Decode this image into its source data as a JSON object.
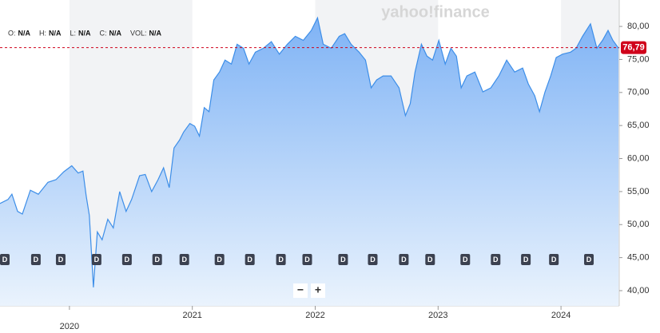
{
  "chart_data": {
    "type": "area",
    "watermark": "yahoo!finance",
    "header": [
      {
        "label": "O:",
        "value": "N/A"
      },
      {
        "label": "H:",
        "value": "N/A"
      },
      {
        "label": "L:",
        "value": "N/A"
      },
      {
        "label": "C:",
        "value": "N/A"
      },
      {
        "label": "VOL:",
        "value": "N/A"
      }
    ],
    "zoom": [
      "−",
      "+"
    ],
    "x": [
      2019.435,
      2019.5,
      2019.532,
      2019.578,
      2019.617,
      2019.682,
      2019.747,
      2019.825,
      2019.89,
      2019.954,
      2020.019,
      2020.071,
      2020.11,
      2020.136,
      2020.162,
      2020.195,
      2020.227,
      2020.266,
      2020.312,
      2020.357,
      2020.409,
      2020.461,
      2020.506,
      2020.571,
      2020.617,
      2020.669,
      2020.721,
      2020.766,
      2020.812,
      2020.851,
      2020.896,
      2020.929,
      2020.98,
      2021.019,
      2021.058,
      2021.097,
      2021.136,
      2021.175,
      2021.221,
      2021.266,
      2021.318,
      2021.364,
      2021.416,
      2021.461,
      2021.513,
      2021.578,
      2021.643,
      2021.708,
      2021.773,
      2021.838,
      2021.903,
      2021.968,
      2022.019,
      2022.065,
      2022.13,
      2022.195,
      2022.24,
      2022.292,
      2022.357,
      2022.409,
      2022.455,
      2022.5,
      2022.552,
      2022.617,
      2022.682,
      2022.734,
      2022.773,
      2022.812,
      2022.864,
      2022.909,
      2022.955,
      2023.006,
      2023.058,
      2023.104,
      2023.149,
      2023.188,
      2023.234,
      2023.299,
      2023.364,
      2023.429,
      2023.494,
      2023.558,
      2023.623,
      2023.688,
      2023.734,
      2023.786,
      2023.825,
      2023.87,
      2023.916,
      2023.961,
      2024.013,
      2024.078,
      2024.123,
      2024.175,
      2024.24,
      2024.292,
      2024.338,
      2024.383,
      2024.422,
      2024.468
    ],
    "values": [
      53.2,
      53.8,
      54.6,
      52.0,
      51.6,
      55.2,
      54.6,
      56.4,
      56.8,
      58.0,
      58.9,
      57.8,
      58.1,
      54.4,
      51.4,
      40.5,
      48.9,
      47.7,
      50.8,
      49.5,
      55.0,
      52.0,
      53.8,
      57.4,
      57.6,
      55.0,
      56.8,
      58.6,
      55.6,
      61.6,
      62.8,
      64.0,
      65.3,
      64.9,
      63.4,
      67.7,
      67.1,
      71.9,
      73.1,
      74.9,
      74.3,
      77.3,
      76.7,
      74.3,
      76.1,
      76.7,
      77.7,
      75.8,
      77.3,
      78.5,
      77.9,
      79.4,
      81.3,
      77.3,
      76.7,
      78.5,
      78.9,
      77.3,
      76.1,
      74.9,
      70.7,
      71.9,
      72.5,
      72.5,
      70.7,
      66.5,
      68.3,
      73.1,
      77.3,
      75.5,
      74.9,
      77.9,
      74.3,
      76.7,
      75.5,
      70.7,
      72.5,
      73.1,
      70.1,
      70.7,
      72.5,
      74.9,
      73.1,
      73.7,
      71.3,
      69.5,
      67.1,
      70.1,
      72.5,
      75.3,
      75.8,
      76.1,
      76.7,
      78.5,
      80.4,
      76.7,
      77.9,
      79.4,
      77.9,
      76.7
    ],
    "color": "#3d8ee8",
    "xlim": [
      2019.435,
      2024.474
    ],
    "xticks": [
      2020,
      2021,
      2022,
      2023,
      2024
    ],
    "ylim": [
      37.7,
      84
    ],
    "yticks": [
      {
        "value": 40,
        "label": "40,00"
      },
      {
        "value": 45,
        "label": "45,00"
      },
      {
        "value": 50,
        "label": "50,00"
      },
      {
        "value": 55,
        "label": "55,00"
      },
      {
        "value": 60,
        "label": "60,00"
      },
      {
        "value": 65,
        "label": "65,00"
      },
      {
        "value": 70,
        "label": "70,00"
      },
      {
        "value": 75,
        "label": "75,00"
      },
      {
        "value": 80,
        "label": "80,00"
      }
    ],
    "last_price": {
      "value": 76.79,
      "label": "76,79"
    },
    "last_price_color": "#d0021b",
    "dividend_label": "D",
    "dividend_x": [
      2019.474,
      2019.727,
      2019.929,
      2020.221,
      2020.468,
      2020.714,
      2020.935,
      2021.221,
      2021.468,
      2021.721,
      2021.935,
      2022.227,
      2022.468,
      2022.721,
      2022.935,
      2023.221,
      2023.468,
      2023.714,
      2023.942,
      2024.227
    ]
  }
}
